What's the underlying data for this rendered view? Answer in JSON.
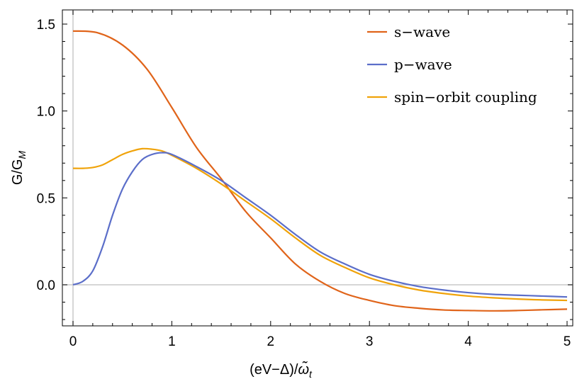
{
  "chart_data": {
    "type": "line",
    "title": "",
    "xlabel": "(eV−Δ)/",
    "xlabel_symbol": "ω̃",
    "xlabel_subscript": "t",
    "ylabel": "G",
    "ylabel_slash": "/",
    "ylabel_denominator": "G",
    "ylabel_subscript": "M",
    "xlim": [
      0,
      5
    ],
    "ylim": [
      -0.22,
      1.55
    ],
    "x_ticks": [
      0,
      1,
      2,
      3,
      4,
      5
    ],
    "x_tick_labels": [
      "0",
      "1",
      "2",
      "3",
      "4",
      "5"
    ],
    "y_ticks": [
      0.0,
      0.5,
      1.0,
      1.5
    ],
    "y_tick_labels": [
      "0.0",
      "0.5",
      "1.0",
      "1.5"
    ],
    "grid": false,
    "legend_position": "top-right",
    "series": [
      {
        "name": "s−wave",
        "color": "#e0641a",
        "x": [
          0,
          0.25,
          0.5,
          0.75,
          1.0,
          1.25,
          1.5,
          1.75,
          2.0,
          2.25,
          2.5,
          2.75,
          3.0,
          3.25,
          3.5,
          3.75,
          4.0,
          4.25,
          4.5,
          4.75,
          5.0
        ],
        "y": [
          1.46,
          1.45,
          1.38,
          1.24,
          1.02,
          0.79,
          0.61,
          0.42,
          0.27,
          0.12,
          0.02,
          -0.05,
          -0.09,
          -0.12,
          -0.135,
          -0.145,
          -0.148,
          -0.15,
          -0.148,
          -0.144,
          -0.14
        ]
      },
      {
        "name": "p−wave",
        "color": "#5b6ec9",
        "x": [
          0,
          0.1,
          0.2,
          0.3,
          0.4,
          0.5,
          0.6,
          0.7,
          0.8,
          0.9,
          1.0,
          1.25,
          1.5,
          1.75,
          2.0,
          2.25,
          2.5,
          2.75,
          3.0,
          3.25,
          3.5,
          3.75,
          4.0,
          4.25,
          4.5,
          4.75,
          5.0
        ],
        "y": [
          0.0,
          0.02,
          0.08,
          0.22,
          0.4,
          0.55,
          0.65,
          0.72,
          0.75,
          0.76,
          0.75,
          0.68,
          0.6,
          0.5,
          0.4,
          0.29,
          0.19,
          0.12,
          0.06,
          0.02,
          -0.01,
          -0.03,
          -0.045,
          -0.055,
          -0.06,
          -0.065,
          -0.07
        ]
      },
      {
        "name": "spin−orbit coupling",
        "color": "#f0a30a",
        "x": [
          0,
          0.1,
          0.2,
          0.3,
          0.4,
          0.5,
          0.6,
          0.7,
          0.8,
          0.9,
          1.0,
          1.25,
          1.5,
          1.75,
          2.0,
          2.25,
          2.5,
          2.75,
          3.0,
          3.25,
          3.5,
          3.75,
          4.0,
          4.25,
          4.5,
          4.75,
          5.0
        ],
        "y": [
          0.67,
          0.67,
          0.675,
          0.69,
          0.72,
          0.75,
          0.77,
          0.783,
          0.78,
          0.77,
          0.745,
          0.67,
          0.58,
          0.48,
          0.38,
          0.27,
          0.17,
          0.1,
          0.04,
          0.0,
          -0.03,
          -0.05,
          -0.065,
          -0.075,
          -0.082,
          -0.087,
          -0.09
        ]
      }
    ]
  }
}
